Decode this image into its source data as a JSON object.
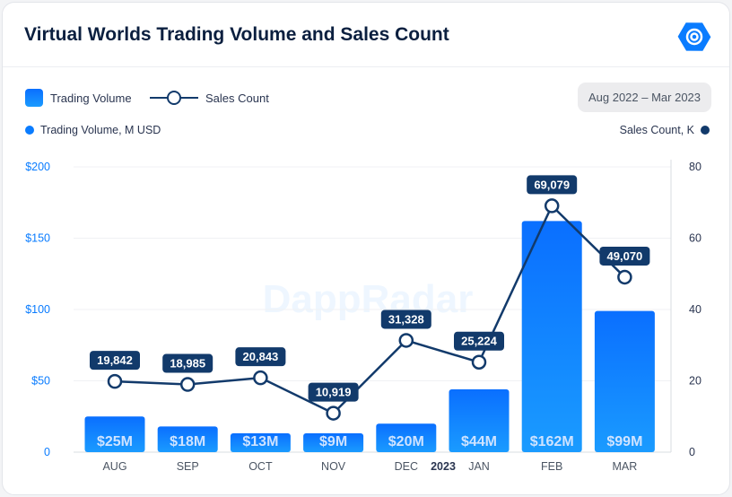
{
  "header": {
    "title": "Virtual Worlds Trading Volume and Sales Count",
    "logo_icon": "dappradar-logo-icon"
  },
  "legend": {
    "bar_label": "Trading Volume",
    "line_label": "Sales Count"
  },
  "date_range": "Aug 2022 – Mar 2023",
  "watermark": "DappRadar",
  "colors": {
    "bar": "#0a7cff",
    "line": "#123a6b",
    "left_axis": "#0a7cff",
    "right_axis": "#123a6b"
  },
  "chart_data": {
    "type": "bar+line",
    "categories": [
      "AUG",
      "SEP",
      "OCT",
      "NOV",
      "DEC",
      "JAN",
      "FEB",
      "MAR"
    ],
    "year_marker": "2023",
    "left_axis": {
      "label": "Trading Volume, M USD",
      "range": [
        0,
        200
      ],
      "ticks": [
        "0",
        "$50",
        "$100",
        "$150",
        "$200"
      ]
    },
    "right_axis": {
      "label": "Sales Count, K",
      "range": [
        0,
        80
      ],
      "ticks": [
        "0",
        "20",
        "40",
        "60",
        "80"
      ]
    },
    "grid": true,
    "series": [
      {
        "name": "Trading Volume",
        "type": "bar",
        "axis": "left",
        "values": [
          25,
          18,
          13,
          9,
          20,
          44,
          162,
          99
        ],
        "labels": [
          "$25M",
          "$18M",
          "$13M",
          "$9M",
          "$20M",
          "$44M",
          "$162M",
          "$99M"
        ]
      },
      {
        "name": "Sales Count",
        "type": "line",
        "axis": "right",
        "values": [
          19.842,
          18.985,
          20.843,
          10.919,
          31.328,
          25.224,
          69.079,
          49.07
        ],
        "labels": [
          "19,842",
          "18,985",
          "20,843",
          "10,919",
          "31,328",
          "25,224",
          "69,079",
          "49,070"
        ]
      }
    ]
  }
}
